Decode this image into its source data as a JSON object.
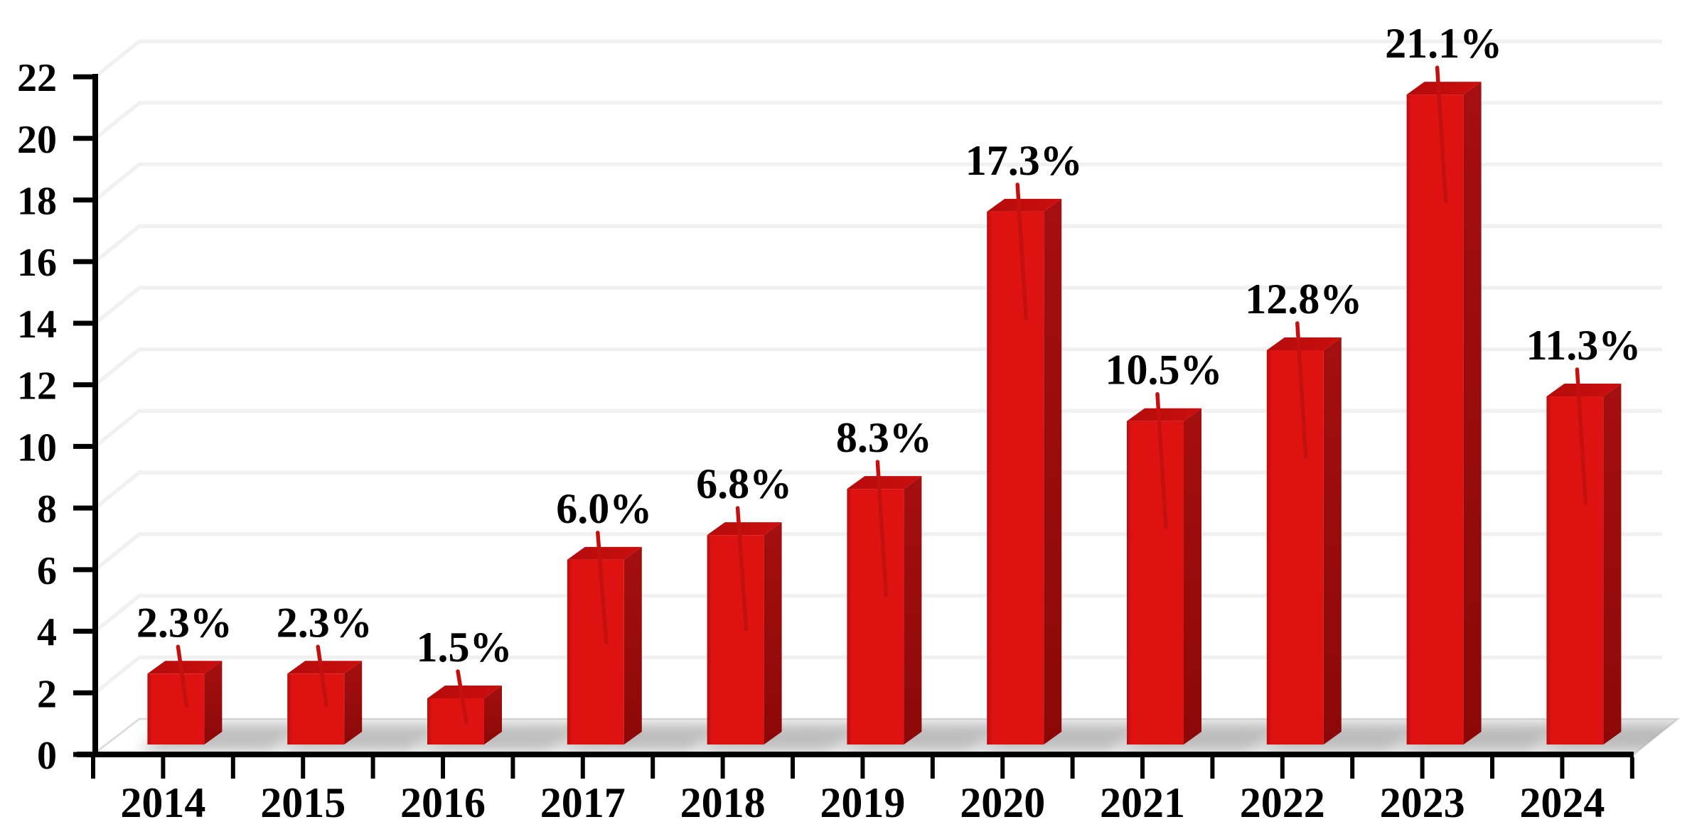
{
  "figure": {
    "background": "#FFFFFF",
    "title": ""
  },
  "chart_data": {
    "type": "bar",
    "projection": "3d",
    "title": "",
    "xlabel": "",
    "ylabel": "",
    "categories": [
      "2014",
      "2015",
      "2016",
      "2017",
      "2018",
      "2019",
      "2020",
      "2021",
      "2022",
      "2023",
      "2024"
    ],
    "values": [
      2.3,
      2.3,
      1.5,
      6.0,
      6.8,
      8.3,
      17.3,
      10.5,
      12.8,
      21.1,
      11.3
    ],
    "data_labels": [
      "2.3%",
      "2.3%",
      "1.5%",
      "6.0%",
      "6.8%",
      "8.3%",
      "17.3%",
      "10.5%",
      "12.8%",
      "21.1%",
      "11.3%"
    ],
    "y_axis": {
      "min": 0,
      "max": 22,
      "tick_step": 2,
      "tick_labels": [
        "0",
        "2",
        "4",
        "6",
        "8",
        "10",
        "12",
        "14",
        "16",
        "18",
        "20",
        "22"
      ]
    },
    "grid": {
      "visible": true,
      "color": "#F1F1F1"
    },
    "legend": {
      "visible": false
    },
    "colors": {
      "bar_front": "#DF1212",
      "bar_front_edge": "#B90D0D",
      "bar_top_left": "#B40B0B",
      "bar_top_right": "#CC0E0E",
      "bar_side_top": "#A50F0F",
      "bar_side_bottom": "#8C0808",
      "error_bar": "#C51010",
      "axis": "#000000",
      "text": "#000000",
      "shadow": "#8C8C8C",
      "floor_edge": "#D9D9D9"
    }
  }
}
